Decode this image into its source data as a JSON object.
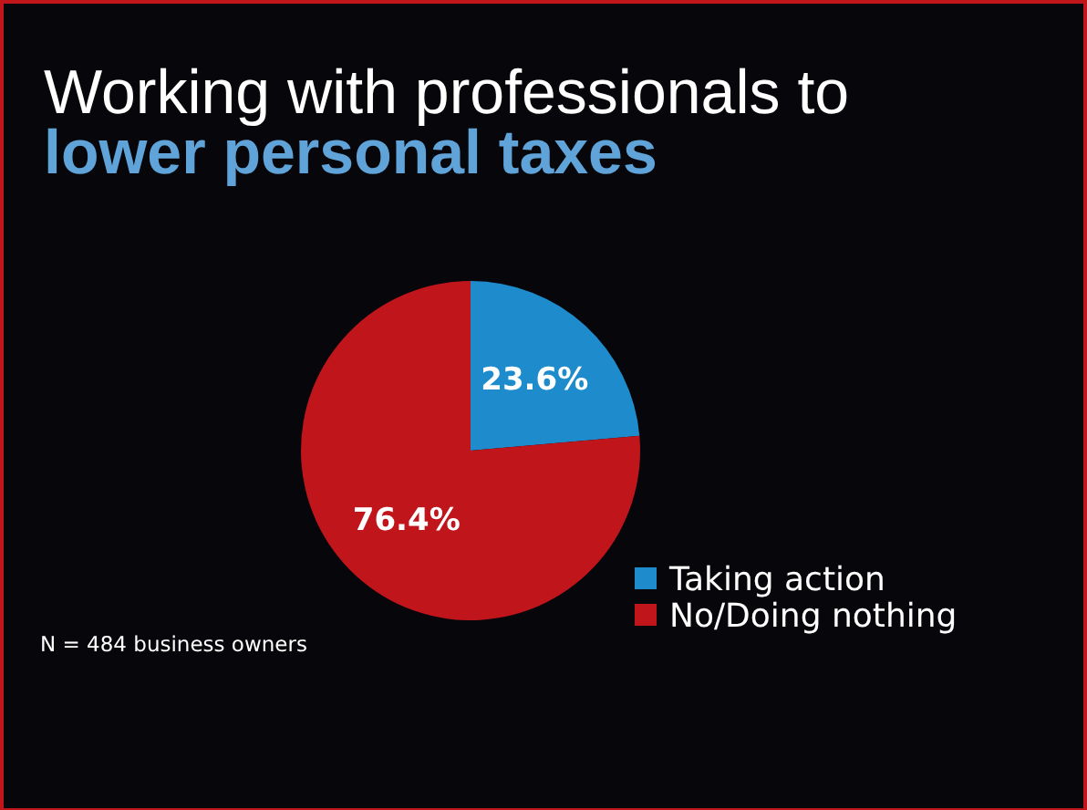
{
  "chart_data": {
    "type": "pie",
    "title": "Working with professionals to",
    "subtitle": "lower personal taxes",
    "categories": [
      "Taking action",
      "No/Doing nothing"
    ],
    "values": [
      23.6,
      76.4
    ],
    "colors": [
      "#1e8ccc",
      "#c1151c"
    ],
    "value_labels": [
      "23.6%",
      "76.4%"
    ],
    "legend": "right",
    "annotations": [
      "N = 484 business owners"
    ]
  }
}
